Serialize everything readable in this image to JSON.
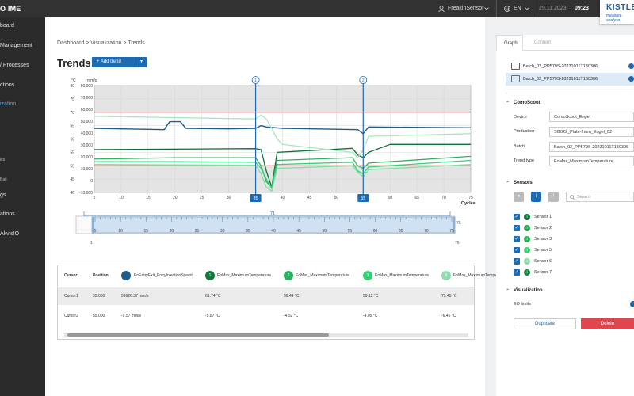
{
  "topbar": {
    "brand": "O IME",
    "user": "FreakinSensor",
    "language": "EN",
    "date": "29.11.2023",
    "time": "09:23"
  },
  "logo": {
    "name": "KISTLER",
    "tagline": "measure. analyze"
  },
  "sidebar": {
    "items": [
      {
        "label": "board"
      },
      {
        "label": "Management"
      },
      {
        "label": "/ Processes"
      },
      {
        "label": "ctions"
      },
      {
        "label": "ization",
        "active": true
      },
      {
        "label": ""
      },
      {
        "label": "ics",
        "sub": true
      },
      {
        "label": "Bait",
        "sub": true
      },
      {
        "label": "gs"
      },
      {
        "label": "ations"
      },
      {
        "label": "AkvisIO"
      }
    ]
  },
  "breadcrumb": "Dashboard > Visualization > Trends",
  "page_title": "Trends",
  "add_trend_label": "+ Add trend",
  "chart": {
    "left_unit": "°C",
    "right_unit": "mm/s",
    "left_ticks": [
      "80",
      "75",
      "70",
      "65",
      "60",
      "55",
      "50",
      "45",
      "40"
    ],
    "right_ticks": [
      "80,000",
      "70,000",
      "60,000",
      "50,000",
      "40,000",
      "30,000",
      "20,000",
      "10,000",
      "0",
      "-10,000"
    ],
    "x_ticks": [
      "5",
      "10",
      "15",
      "20",
      "25",
      "30",
      "35",
      "40",
      "45",
      "50",
      "55",
      "60",
      "65",
      "70",
      "75"
    ],
    "x_label": "Cycles",
    "limit_upper": 70,
    "limit_lower": 50,
    "cursors": [
      {
        "id": "1",
        "x": 35
      },
      {
        "id": "2",
        "x": 55
      }
    ],
    "x_min": 5,
    "x_max": 75
  },
  "range": {
    "ticks": [
      "5",
      "10",
      "15",
      "20",
      "25",
      "30",
      "35",
      "40",
      "45",
      "50",
      "55",
      "60",
      "65",
      "70",
      "75"
    ],
    "start_label": "5",
    "start_value": "1",
    "end_label": "75",
    "end_value": "76",
    "top_label": "71"
  },
  "chart_data": {
    "type": "line",
    "title": "Trends",
    "xlabel": "Cycles",
    "ylabel": "°C",
    "y2label": "mm/s",
    "xlim": [
      5,
      75
    ],
    "ylim": [
      40,
      80
    ],
    "y2lim": [
      -10000,
      80000
    ],
    "series": [
      {
        "name": "EoEntryExit_EntryInjectionSpeed",
        "color": "#1f5c8e",
        "points": [
          [
            5,
            64
          ],
          [
            18,
            63.5
          ],
          [
            19,
            66.5
          ],
          [
            21,
            66.5
          ],
          [
            22,
            64
          ],
          [
            30,
            63.8
          ],
          [
            35,
            64
          ],
          [
            36,
            65
          ],
          [
            37,
            64.5
          ],
          [
            40,
            64
          ],
          [
            54,
            63.5
          ],
          [
            55,
            62
          ],
          [
            56,
            64.5
          ],
          [
            75,
            64.2
          ]
        ]
      },
      {
        "name": "Sensor 1",
        "color": "#0f6e3c",
        "points": [
          [
            5,
            56
          ],
          [
            35,
            56.4
          ],
          [
            36,
            56
          ],
          [
            37,
            48
          ],
          [
            38,
            42
          ],
          [
            39,
            55
          ],
          [
            53,
            56.5
          ],
          [
            54,
            54
          ],
          [
            55,
            53
          ],
          [
            56,
            55
          ],
          [
            60,
            58
          ],
          [
            75,
            58
          ]
        ]
      },
      {
        "name": "Sensor 2",
        "color": "#2eb35f",
        "points": [
          [
            5,
            52.5
          ],
          [
            20,
            53
          ],
          [
            35,
            53
          ],
          [
            36,
            50
          ],
          [
            37,
            44
          ],
          [
            38,
            42
          ],
          [
            39,
            52
          ],
          [
            53,
            53
          ],
          [
            54,
            50
          ],
          [
            55,
            49
          ],
          [
            56,
            51
          ],
          [
            75,
            53.5
          ]
        ]
      },
      {
        "name": "Sensor 3",
        "color": "#33d17a",
        "points": [
          [
            5,
            51.5
          ],
          [
            20,
            51.5
          ],
          [
            35,
            51.3
          ],
          [
            36,
            49
          ],
          [
            37,
            45
          ],
          [
            38,
            41.5
          ],
          [
            39,
            50.5
          ],
          [
            53,
            51.3
          ],
          [
            54,
            48
          ],
          [
            55,
            47
          ],
          [
            56,
            49.5
          ],
          [
            75,
            52
          ]
        ]
      },
      {
        "name": "Sensor 4",
        "color": "#7ee0a0",
        "points": [
          [
            5,
            50.5
          ],
          [
            20,
            50.3
          ],
          [
            35,
            50.2
          ],
          [
            36,
            47
          ],
          [
            37,
            42
          ],
          [
            38,
            40.5
          ],
          [
            39,
            49
          ],
          [
            53,
            50
          ],
          [
            54,
            47.5
          ],
          [
            55,
            46
          ],
          [
            56,
            48.5
          ],
          [
            75,
            50.5
          ]
        ]
      },
      {
        "name": "Sensor 6",
        "color": "#a8e8bf",
        "points": [
          [
            5,
            68.5
          ],
          [
            20,
            68
          ],
          [
            35,
            67.5
          ],
          [
            36,
            69
          ],
          [
            37,
            67.5
          ],
          [
            38,
            64
          ],
          [
            39,
            60
          ],
          [
            40,
            58
          ],
          [
            53,
            55
          ],
          [
            54,
            53
          ],
          [
            55,
            56
          ],
          [
            56,
            61
          ],
          [
            75,
            62
          ]
        ]
      }
    ]
  },
  "table": {
    "headers": {
      "cursor": "Cursor",
      "position": "Position"
    },
    "columns": [
      {
        "badge": "",
        "name": "EoEntryExit_EntryInjectionSpeed",
        "color": "#1f5c8e"
      },
      {
        "badge": "1",
        "name": "EoMax_MaximumTemperature",
        "color": "#0f7a3a"
      },
      {
        "badge": "2",
        "name": "EoMax_MaximumTemperature",
        "color": "#25b35e"
      },
      {
        "badge": "3",
        "name": "EoMax_MaximumTemperature",
        "color": "#30d070"
      },
      {
        "badge": "5",
        "name": "EoMax_MaximumTemperature",
        "color": "#8fdcae"
      }
    ],
    "rows": [
      {
        "cursor": "Cursor1",
        "position": "35.000",
        "values": [
          "59626.37 mm/s",
          "61.74 °C",
          "59.44 °C",
          "59.12 °C",
          "73.45 °C"
        ]
      },
      {
        "cursor": "Cursor2",
        "position": "55.000",
        "values": [
          "-9.57 mm/s",
          "-5.87 °C",
          "-4.52 °C",
          "-4.05 °C",
          "-6.45 °C"
        ]
      }
    ]
  },
  "panel": {
    "tabs": {
      "graph": "Graph",
      "content": "Content"
    },
    "batches": [
      {
        "label": "Batch_02_PP579S-20231011T130306",
        "selected": false
      },
      {
        "label": "Batch_02_PP579S-20231011T130306",
        "selected": true
      }
    ],
    "section_como": "ComoScout",
    "fields": [
      {
        "label": "Device",
        "value": "ComoScout_Engel"
      },
      {
        "label": "Production",
        "value": "SG022_Plate-2mm_Engel_02"
      },
      {
        "label": "Batch",
        "value": "Batch_02_PP579S-20231011T130306"
      },
      {
        "label": "Trend type",
        "value": "EoMax_MaximumTemperature"
      }
    ],
    "section_sensors": "Sensors",
    "search_placeholder": "Search",
    "sensors": [
      {
        "name": "Sensor 1",
        "color": "#0f7a3a"
      },
      {
        "name": "Sensor 2",
        "color": "#1fa54f"
      },
      {
        "name": "Sensor 3",
        "color": "#26b85a"
      },
      {
        "name": "Sensor 5",
        "color": "#3ccf72"
      },
      {
        "name": "Sensor 6",
        "color": "#88dcaa"
      },
      {
        "name": "Sensor 7",
        "color": "#158a43"
      }
    ],
    "section_vis": "Visualization",
    "eo_limits": "EO limits",
    "duplicate": "Duplicate",
    "delete": "Delete"
  }
}
